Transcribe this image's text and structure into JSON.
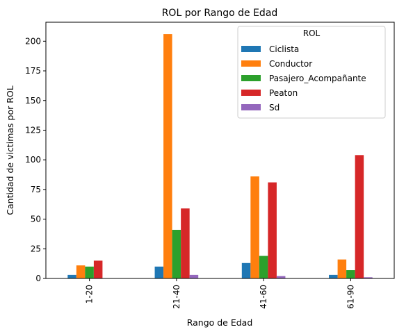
{
  "chart_data": {
    "type": "bar",
    "title": "ROL por Rango de Edad",
    "xlabel": "Rango de Edad",
    "ylabel": "Cantidad de victimas por ROL",
    "categories": [
      "1-20",
      "21-40",
      "41-60",
      "61-90"
    ],
    "ylim": [
      0,
      216
    ],
    "yticks": [
      0,
      25,
      50,
      75,
      100,
      125,
      150,
      175,
      200
    ],
    "grid": false,
    "legend": {
      "title": "ROL",
      "placement": "top-right"
    },
    "series": [
      {
        "name": "Ciclista",
        "color": "#1f77b4",
        "values": [
          3,
          10,
          13,
          3
        ]
      },
      {
        "name": "Conductor",
        "color": "#ff7f0e",
        "values": [
          11,
          206,
          86,
          16
        ]
      },
      {
        "name": "Pasajero_Acompañante",
        "color": "#2ca02c",
        "values": [
          10,
          41,
          19,
          7
        ]
      },
      {
        "name": "Peaton",
        "color": "#d62728",
        "values": [
          15,
          59,
          81,
          104
        ]
      },
      {
        "name": "Sd",
        "color": "#9467bd",
        "values": [
          0,
          3,
          2,
          1
        ]
      }
    ]
  }
}
